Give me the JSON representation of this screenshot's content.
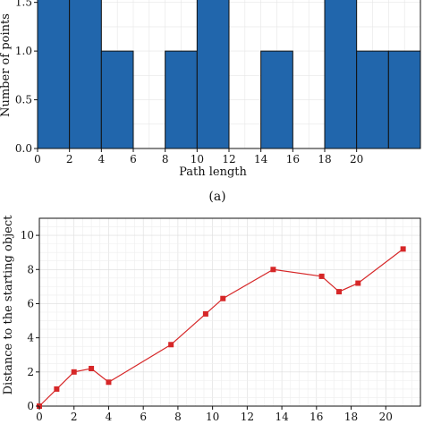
{
  "chart_data": [
    {
      "type": "bar",
      "title": "",
      "caption": "(a)",
      "xlabel": "Path length",
      "ylabel": "Number of points",
      "bin_width": 2,
      "bins": [
        {
          "x0": 0,
          "count": 2
        },
        {
          "x0": 2,
          "count": 2
        },
        {
          "x0": 4,
          "count": 1
        },
        {
          "x0": 8,
          "count": 1
        },
        {
          "x0": 10,
          "count": 2
        },
        {
          "x0": 14,
          "count": 1
        },
        {
          "x0": 18,
          "count": 2
        },
        {
          "x0": 20,
          "count": 1
        },
        {
          "x0": 22,
          "count": 1
        }
      ],
      "xlim": [
        0,
        24
      ],
      "ylim": [
        0,
        1.8
      ],
      "xticks": [
        "0",
        "2",
        "4",
        "6",
        "8",
        "10",
        "12",
        "14",
        "16",
        "18",
        "20"
      ],
      "xtick_values": [
        0,
        2,
        4,
        6,
        8,
        10,
        12,
        14,
        16,
        18,
        20
      ],
      "yticks": [
        "0.0",
        "0.5",
        "1.0",
        "1.5"
      ],
      "ytick_values": [
        0,
        0.5,
        1.0,
        1.5
      ],
      "grid": true,
      "colors": {
        "bar_fill": "#2166ac",
        "bar_edge": "#111111"
      }
    },
    {
      "type": "line",
      "title": "",
      "xlabel": "",
      "ylabel": "Distance to the starting object",
      "x": [
        0,
        1,
        2,
        3,
        4,
        7.6,
        9.6,
        10.6,
        13.5,
        16.3,
        17.3,
        18.4,
        21
      ],
      "y": [
        0,
        1.0,
        2.0,
        2.2,
        1.4,
        3.6,
        5.4,
        6.3,
        8.0,
        7.6,
        6.7,
        7.2,
        9.2
      ],
      "xlim": [
        0,
        22
      ],
      "ylim": [
        0,
        11
      ],
      "xticks": [
        "0",
        "2",
        "4",
        "6",
        "8",
        "10",
        "12",
        "14",
        "16",
        "18",
        "20"
      ],
      "xtick_values": [
        0,
        2,
        4,
        6,
        8,
        10,
        12,
        14,
        16,
        18,
        20
      ],
      "yticks": [
        "0",
        "2",
        "4",
        "6",
        "8",
        "10"
      ],
      "ytick_values": [
        0,
        2,
        4,
        6,
        8,
        10
      ],
      "grid": true,
      "colors": {
        "line": "#d62728",
        "marker": "#d62728"
      }
    }
  ]
}
